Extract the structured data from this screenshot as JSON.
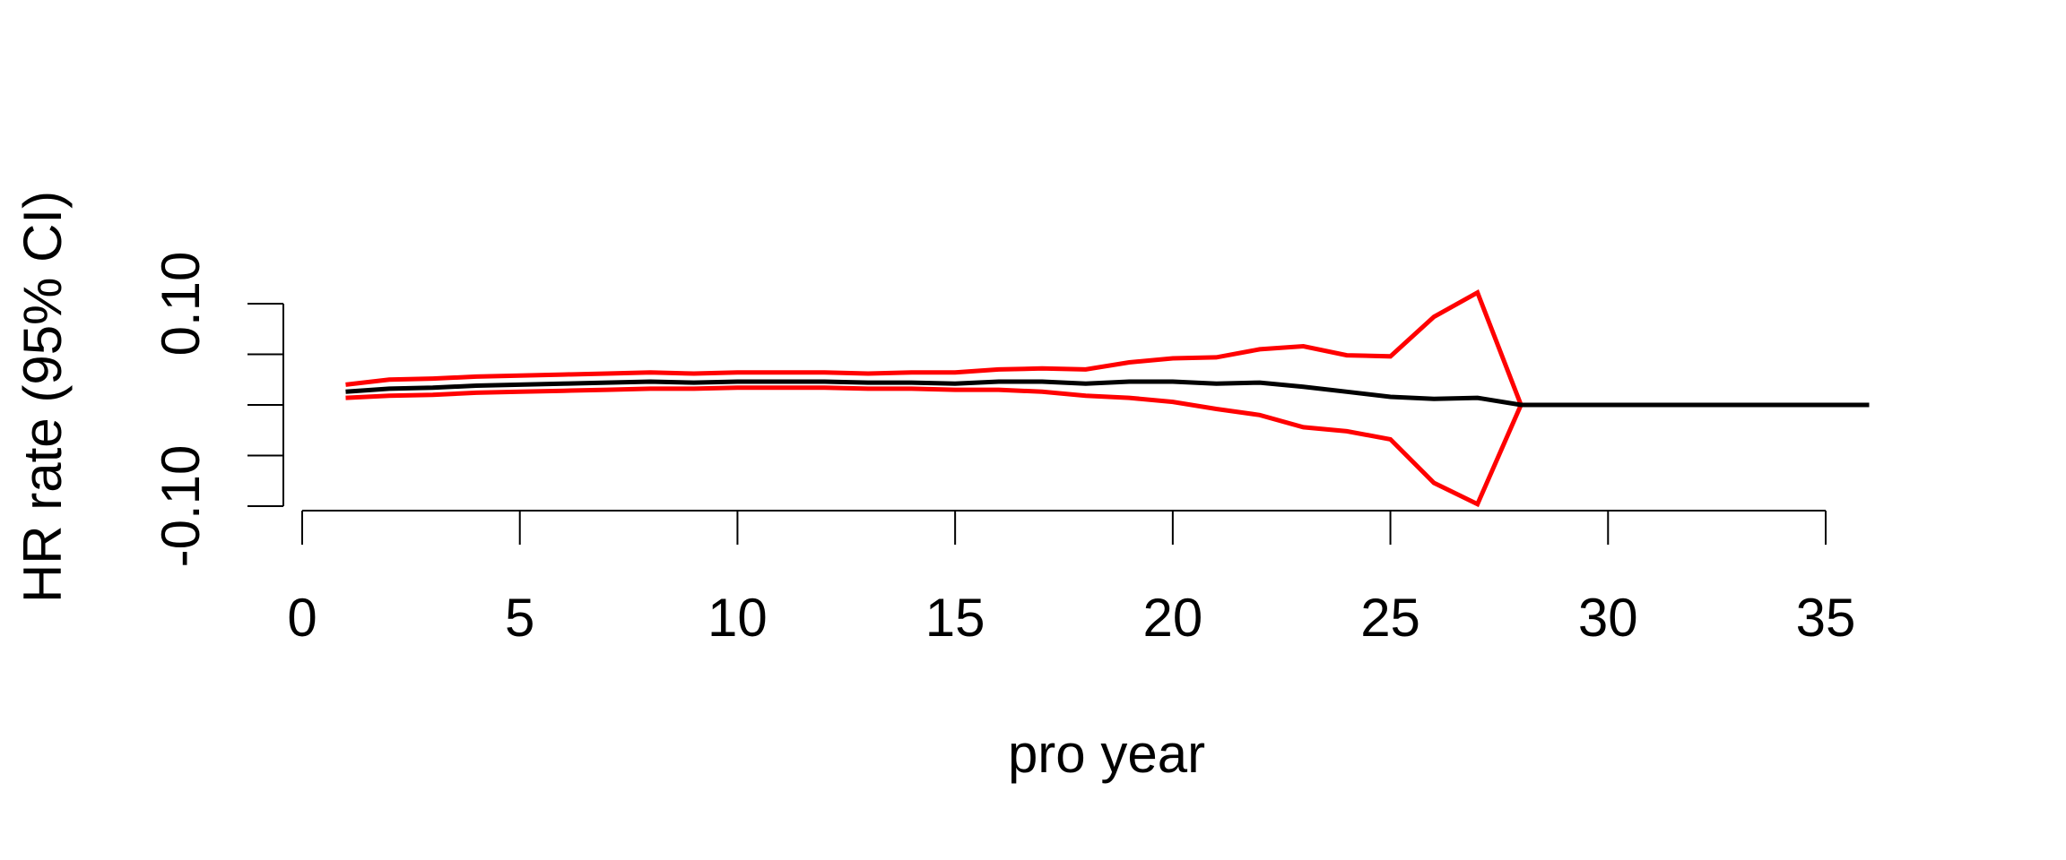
{
  "chart_data": {
    "type": "line",
    "title": "",
    "xlabel": "pro year",
    "ylabel": "HR rate (95% CI)",
    "xlim": [
      0,
      35
    ],
    "ylim": [
      -0.1,
      0.1
    ],
    "x_ticks": [
      0,
      5,
      10,
      15,
      20,
      25,
      30,
      35
    ],
    "x_tick_labels": [
      "0",
      "5",
      "10",
      "15",
      "20",
      "25",
      "30",
      "35"
    ],
    "y_ticks": [
      -0.1,
      -0.05,
      0.0,
      0.05,
      0.1
    ],
    "y_tick_labels": [
      "-0.10",
      "",
      "",
      "",
      "0.10"
    ],
    "grid": false,
    "series": [
      {
        "role": "estimate",
        "color": "#000000",
        "x": [
          1,
          2,
          3,
          4,
          5,
          6,
          7,
          8,
          9,
          10,
          11,
          12,
          13,
          14,
          15,
          16,
          17,
          18,
          19,
          20,
          21,
          22,
          23,
          24,
          25,
          26,
          27,
          28,
          29,
          30,
          31,
          32,
          33,
          34,
          35,
          36
        ],
        "y": [
          0.013,
          0.016,
          0.017,
          0.019,
          0.02,
          0.021,
          0.022,
          0.023,
          0.022,
          0.023,
          0.023,
          0.023,
          0.022,
          0.022,
          0.021,
          0.023,
          0.023,
          0.021,
          0.023,
          0.023,
          0.021,
          0.022,
          0.018,
          0.013,
          0.008,
          0.006,
          0.007,
          0.0,
          0.0,
          0.0,
          0.0,
          0.0,
          0.0,
          0.0,
          0.0,
          0.0
        ]
      },
      {
        "role": "upper-ci",
        "color": "#ff0000",
        "x": [
          1,
          2,
          3,
          4,
          5,
          6,
          7,
          8,
          9,
          10,
          11,
          12,
          13,
          14,
          15,
          16,
          17,
          18,
          19,
          20,
          21,
          22,
          23,
          24,
          25,
          26,
          27,
          28,
          29,
          30,
          31,
          32,
          33,
          34,
          35,
          36
        ],
        "y": [
          0.02,
          0.025,
          0.026,
          0.028,
          0.029,
          0.03,
          0.031,
          0.032,
          0.031,
          0.032,
          0.032,
          0.032,
          0.031,
          0.032,
          0.032,
          0.035,
          0.036,
          0.035,
          0.042,
          0.046,
          0.047,
          0.055,
          0.058,
          0.049,
          0.048,
          0.087,
          0.111,
          0.0,
          0.0,
          0.0,
          0.0,
          0.0,
          0.0,
          0.0,
          0.0,
          0.0
        ]
      },
      {
        "role": "lower-ci",
        "color": "#ff0000",
        "x": [
          1,
          2,
          3,
          4,
          5,
          6,
          7,
          8,
          9,
          10,
          11,
          12,
          13,
          14,
          15,
          16,
          17,
          18,
          19,
          20,
          21,
          22,
          23,
          24,
          25,
          26,
          27,
          28,
          29,
          30,
          31,
          32,
          33,
          34,
          35,
          36
        ],
        "y": [
          0.007,
          0.009,
          0.01,
          0.012,
          0.013,
          0.014,
          0.015,
          0.016,
          0.016,
          0.017,
          0.017,
          0.017,
          0.016,
          0.016,
          0.015,
          0.015,
          0.013,
          0.009,
          0.007,
          0.003,
          -0.004,
          -0.01,
          -0.022,
          -0.026,
          -0.034,
          -0.077,
          -0.098,
          0.0,
          0.0,
          0.0,
          0.0,
          0.0,
          0.0,
          0.0,
          0.0,
          0.0
        ]
      }
    ]
  }
}
